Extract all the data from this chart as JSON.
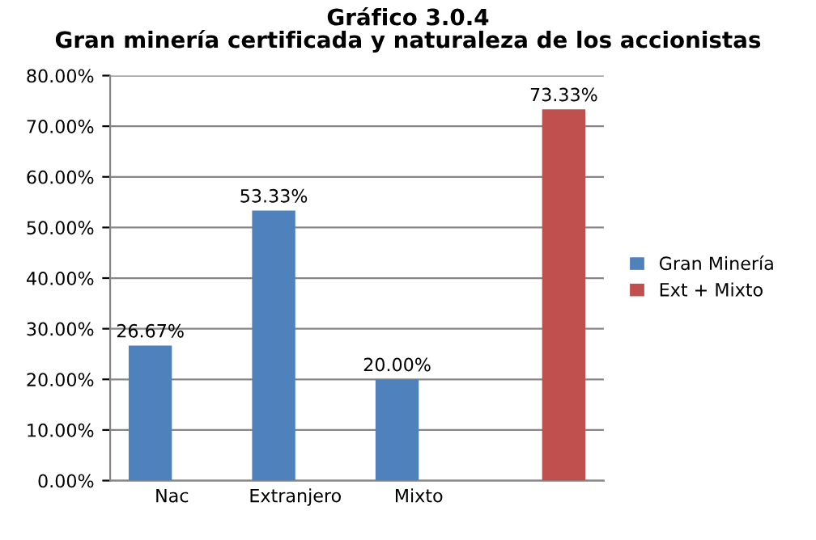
{
  "chart_data": {
    "type": "bar",
    "title": "Gráfico 3.0.4\nGran minería certificada y naturaleza de los accionistas",
    "categories": [
      "Nac",
      "Extranjero",
      "Mixto",
      null
    ],
    "series": [
      {
        "name": "Gran Minería",
        "color": "#4f81bd",
        "values": [
          26.67,
          53.33,
          20.0,
          null
        ],
        "value_labels": [
          "26.67%",
          "53.33%",
          "20.00%",
          null
        ]
      },
      {
        "name": "Ext + Mixto",
        "color": "#c0504d",
        "values": [
          null,
          null,
          null,
          73.33
        ],
        "value_labels": [
          null,
          null,
          null,
          "73.33%"
        ]
      }
    ],
    "ylim": [
      0,
      80
    ],
    "yticks": [
      {
        "value": 0,
        "label": "0.00%"
      },
      {
        "value": 10,
        "label": "10.00%"
      },
      {
        "value": 20,
        "label": "20.00%"
      },
      {
        "value": 30,
        "label": "30.00%"
      },
      {
        "value": 40,
        "label": "40.00%"
      },
      {
        "value": 50,
        "label": "50.00%"
      },
      {
        "value": 60,
        "label": "60.00%"
      },
      {
        "value": 70,
        "label": "70.00%"
      },
      {
        "value": 80,
        "label": "80.00%"
      }
    ],
    "grid": "y",
    "legend": "right"
  }
}
